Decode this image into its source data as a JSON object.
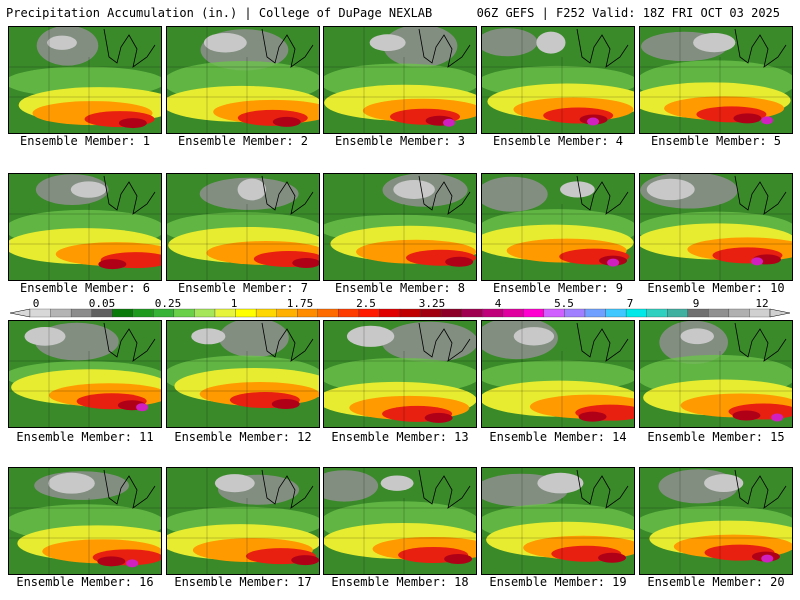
{
  "header": {
    "title": "Precipitation Accumulation (in.) | College of DuPage NEXLAB",
    "run_info": "06Z GEFS | F252 Valid: 18Z FRI OCT 03 2025"
  },
  "label_prefix": "Ensemble Member: ",
  "members": [
    1,
    2,
    3,
    4,
    5,
    6,
    7,
    8,
    9,
    10,
    11,
    12,
    13,
    14,
    15,
    16,
    17,
    18,
    19,
    20
  ],
  "scale": {
    "labels": [
      "0",
      "0.05",
      "0.25",
      "1",
      "1.75",
      "2.5",
      "3.25",
      "4",
      "5.5",
      "7",
      "9",
      "12"
    ],
    "colors": [
      "#d8d8d8",
      "#b4b4b4",
      "#8c8c8c",
      "#606060",
      "#0a7a0a",
      "#1f9a1f",
      "#37b437",
      "#6ad04a",
      "#a6e65a",
      "#e6f53c",
      "#ffff00",
      "#ffd700",
      "#ffb000",
      "#ff8c00",
      "#ff6a00",
      "#ff3c00",
      "#ff1a00",
      "#e00000",
      "#c00000",
      "#a00010",
      "#8c0028",
      "#a00050",
      "#c0007a",
      "#e000a0",
      "#ff00d0",
      "#d060ff",
      "#a080ff",
      "#6fa0ff",
      "#3fc8ff",
      "#00e8e8",
      "#30d0c0",
      "#40b0a0",
      "#707070",
      "#909090",
      "#b0b0b0",
      "#d0d0d0"
    ]
  },
  "field_colors": {
    "gray": "#8f8f8f",
    "lightgray": "#c8c8c8",
    "green": "#3a8a2a",
    "lightgreen": "#6cc04a",
    "yellow": "#e8ec30",
    "orange": "#ff9a00",
    "red": "#e82010",
    "darkred": "#b00018",
    "magenta": "#d020c0"
  }
}
